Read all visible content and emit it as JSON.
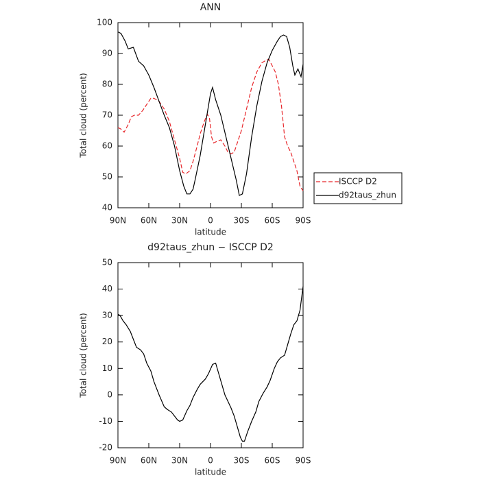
{
  "chart_data": [
    {
      "type": "line",
      "title": "ANN",
      "xlabel": "latitude",
      "ylabel": "Total cloud (percent)",
      "xlim": [
        90,
        -90
      ],
      "ylim": [
        40,
        100
      ],
      "xticks": [
        {
          "value": 90,
          "label": "90N"
        },
        {
          "value": 60,
          "label": "60N"
        },
        {
          "value": 30,
          "label": "30N"
        },
        0,
        {
          "value": -30,
          "label": "30S"
        },
        {
          "value": -60,
          "label": "60S"
        },
        {
          "value": -90,
          "label": "90S"
        }
      ],
      "yticks": [
        40,
        50,
        60,
        70,
        80,
        90,
        100
      ],
      "grid": false,
      "legend": "right",
      "series": [
        {
          "name": "ISCCP D2",
          "color": "#e8262a",
          "dash": true,
          "x": [
            90,
            87,
            84,
            80,
            77,
            74,
            70,
            66,
            62,
            58,
            55,
            50,
            45,
            40,
            35,
            30,
            27,
            24,
            20,
            17,
            13,
            10,
            6,
            3,
            1,
            -1,
            -3,
            -6,
            -10,
            -14,
            -17,
            -20,
            -23,
            -26,
            -30,
            -35,
            -40,
            -45,
            -50,
            -55,
            -57,
            -60,
            -63,
            -66,
            -69,
            -72,
            -75,
            -78,
            -81,
            -84,
            -87,
            -90
          ],
          "values": [
            66,
            65.5,
            64.5,
            67,
            69.5,
            70,
            70,
            71.5,
            73.5,
            75.5,
            75.5,
            74.5,
            72,
            68,
            62,
            56,
            51.5,
            51,
            52,
            55,
            60,
            64,
            68,
            70.3,
            69,
            63,
            61,
            61.5,
            62,
            60,
            58,
            57.5,
            58,
            61,
            65,
            72,
            79,
            84,
            87,
            88,
            88,
            86,
            84,
            80,
            73,
            63,
            60,
            58,
            55,
            52,
            47,
            45.5
          ]
        },
        {
          "name": "d92taus_zhun",
          "color": "#000000",
          "dash": false,
          "x": [
            90,
            87,
            83,
            80,
            75,
            70,
            65,
            60,
            55,
            50,
            45,
            40,
            35,
            30,
            26,
            23,
            20,
            17,
            15,
            10,
            5,
            0,
            -2,
            -5,
            -10,
            -15,
            -20,
            -25,
            -28,
            -31,
            -35,
            -40,
            -45,
            -50,
            -55,
            -60,
            -65,
            -68,
            -71,
            -74,
            -77,
            -80,
            -82,
            -85,
            -88,
            -90
          ],
          "values": [
            97,
            96.5,
            94,
            91.5,
            92,
            87.5,
            86,
            83,
            79,
            74.5,
            70,
            66,
            60,
            52,
            47,
            44.5,
            44.5,
            46,
            49,
            57,
            67,
            77,
            79,
            75,
            70,
            63,
            56,
            49,
            44,
            44.5,
            51,
            63,
            73,
            81,
            87,
            91,
            94,
            95.5,
            96,
            95.5,
            92,
            86,
            83,
            85,
            82.5,
            86.5
          ]
        }
      ]
    },
    {
      "type": "line",
      "title": "d92taus_zhun − ISCCP D2",
      "xlabel": "latitude",
      "ylabel": "Total cloud (percent)",
      "xlim": [
        90,
        -90
      ],
      "ylim": [
        -20,
        50
      ],
      "xticks": [
        {
          "value": 90,
          "label": "90N"
        },
        {
          "value": 60,
          "label": "60N"
        },
        {
          "value": 30,
          "label": "30N"
        },
        0,
        {
          "value": -30,
          "label": "30S"
        },
        {
          "value": -60,
          "label": "60S"
        },
        {
          "value": -90,
          "label": "90S"
        }
      ],
      "yticks": [
        -20,
        -10,
        0,
        10,
        20,
        30,
        40,
        50
      ],
      "grid": false,
      "series": [
        {
          "color": "#000000",
          "dash": false,
          "x": [
            90,
            88,
            85,
            82,
            78,
            75,
            72,
            68,
            65,
            62,
            58,
            55,
            50,
            45,
            42,
            38,
            35,
            32,
            30,
            27,
            23,
            20,
            17,
            13,
            10,
            5,
            2,
            -2,
            -5,
            -8,
            -11,
            -14,
            -17,
            -20,
            -23,
            -26,
            -29,
            -31,
            -33,
            -36,
            -40,
            -44,
            -47,
            -51,
            -55,
            -58,
            -62,
            -65,
            -68,
            -72,
            -75,
            -78,
            -81,
            -84,
            -87,
            -90
          ],
          "values": [
            30.5,
            30,
            28,
            26.5,
            24,
            21,
            18,
            17,
            15.5,
            12,
            9,
            5,
            0,
            -4.5,
            -5.5,
            -6.5,
            -8,
            -9.5,
            -10,
            -9.5,
            -6,
            -4,
            -1,
            2,
            4,
            6,
            8,
            11.5,
            12,
            8,
            4,
            0,
            -2.5,
            -5,
            -8,
            -12,
            -16,
            -17.5,
            -17.5,
            -14,
            -10,
            -6.5,
            -2.5,
            0.5,
            3,
            5.5,
            10,
            12.5,
            14,
            15,
            19,
            23,
            26.5,
            28,
            32,
            41
          ]
        }
      ]
    }
  ]
}
